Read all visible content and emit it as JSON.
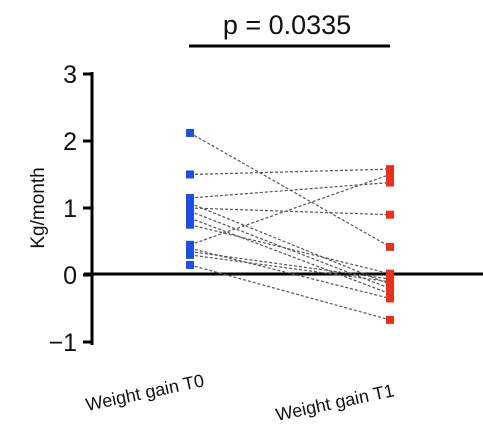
{
  "chart_data": {
    "type": "scatter",
    "title": "",
    "ylabel": "Kg/month",
    "xlabel": "",
    "ylim": [
      -1,
      3
    ],
    "yticks": [
      3,
      2,
      1,
      0,
      -1
    ],
    "ytick_labels": [
      "3",
      "2",
      "1",
      "0",
      "−1"
    ],
    "categories": [
      "Weight gain T0",
      "Weight gain T1"
    ],
    "annotation": "p = 0.0335",
    "colors": {
      "T0": "#1f4fe0",
      "T1": "#e8301c",
      "pair_line": "#555555",
      "axis": "#000000"
    },
    "pairs": [
      {
        "t0": 2.12,
        "t1": 0.42
      },
      {
        "t0": 1.5,
        "t1": 1.58
      },
      {
        "t0": 1.15,
        "t1": 1.38
      },
      {
        "t0": 1.07,
        "t1": -0.14
      },
      {
        "t0": 1.0,
        "t1": 0.9
      },
      {
        "t0": 0.95,
        "t1": -0.2
      },
      {
        "t0": 0.85,
        "t1": -0.28
      },
      {
        "t0": 0.75,
        "t1": 0.02
      },
      {
        "t0": 0.45,
        "t1": 1.5
      },
      {
        "t0": 0.4,
        "t1": -0.35
      },
      {
        "t0": 0.35,
        "t1": -0.06
      },
      {
        "t0": 0.3,
        "t1": -0.1
      },
      {
        "t0": 0.15,
        "t1": -0.67
      }
    ]
  }
}
